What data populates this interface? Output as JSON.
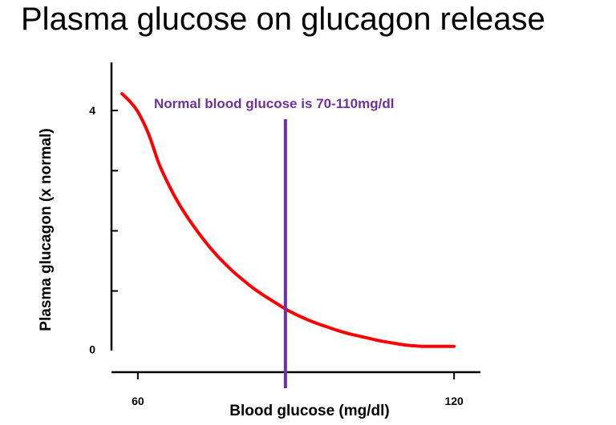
{
  "title": "Plasma glucose on glucagon release",
  "colors": {
    "curve": "#ff0000",
    "reference_line": "#7030a0",
    "axis": "#000000",
    "background": "#ffffff"
  },
  "chart_data": {
    "type": "line",
    "title": "Plasma glucose on glucagon release",
    "xlabel": "Blood glucose (mg/dl)",
    "ylabel": "Plasma glucagon (x normal)",
    "xlim": [
      55,
      125
    ],
    "ylim": [
      -0.35,
      4.8
    ],
    "x_ticks": [
      60,
      120
    ],
    "x_tick_labels": [
      "60",
      "120"
    ],
    "y_ticks": [
      0,
      1,
      2,
      3,
      4
    ],
    "y_tick_labels": [
      {
        "value": 0,
        "label": "0"
      },
      {
        "value": 4,
        "label": "4"
      }
    ],
    "grid": false,
    "series": [
      {
        "name": "Plasma glucagon",
        "x": [
          57,
          58.5,
          60,
          62,
          64,
          66,
          68,
          70,
          72,
          74,
          76,
          78,
          80,
          82,
          84,
          86,
          88,
          90,
          92,
          94,
          96,
          98,
          100,
          102,
          104,
          106,
          108,
          110,
          112,
          114,
          116,
          118,
          120
        ],
        "y": [
          4.28,
          4.15,
          3.98,
          3.62,
          3.12,
          2.74,
          2.42,
          2.15,
          1.91,
          1.69,
          1.5,
          1.33,
          1.18,
          1.04,
          0.92,
          0.81,
          0.7,
          0.61,
          0.53,
          0.46,
          0.4,
          0.34,
          0.29,
          0.25,
          0.21,
          0.17,
          0.14,
          0.11,
          0.09,
          0.08,
          0.08,
          0.08,
          0.08
        ]
      }
    ],
    "annotations": [
      {
        "type": "vline",
        "x": 88,
        "label": "Normal blood glucose is 70-110mg/dl"
      }
    ]
  }
}
